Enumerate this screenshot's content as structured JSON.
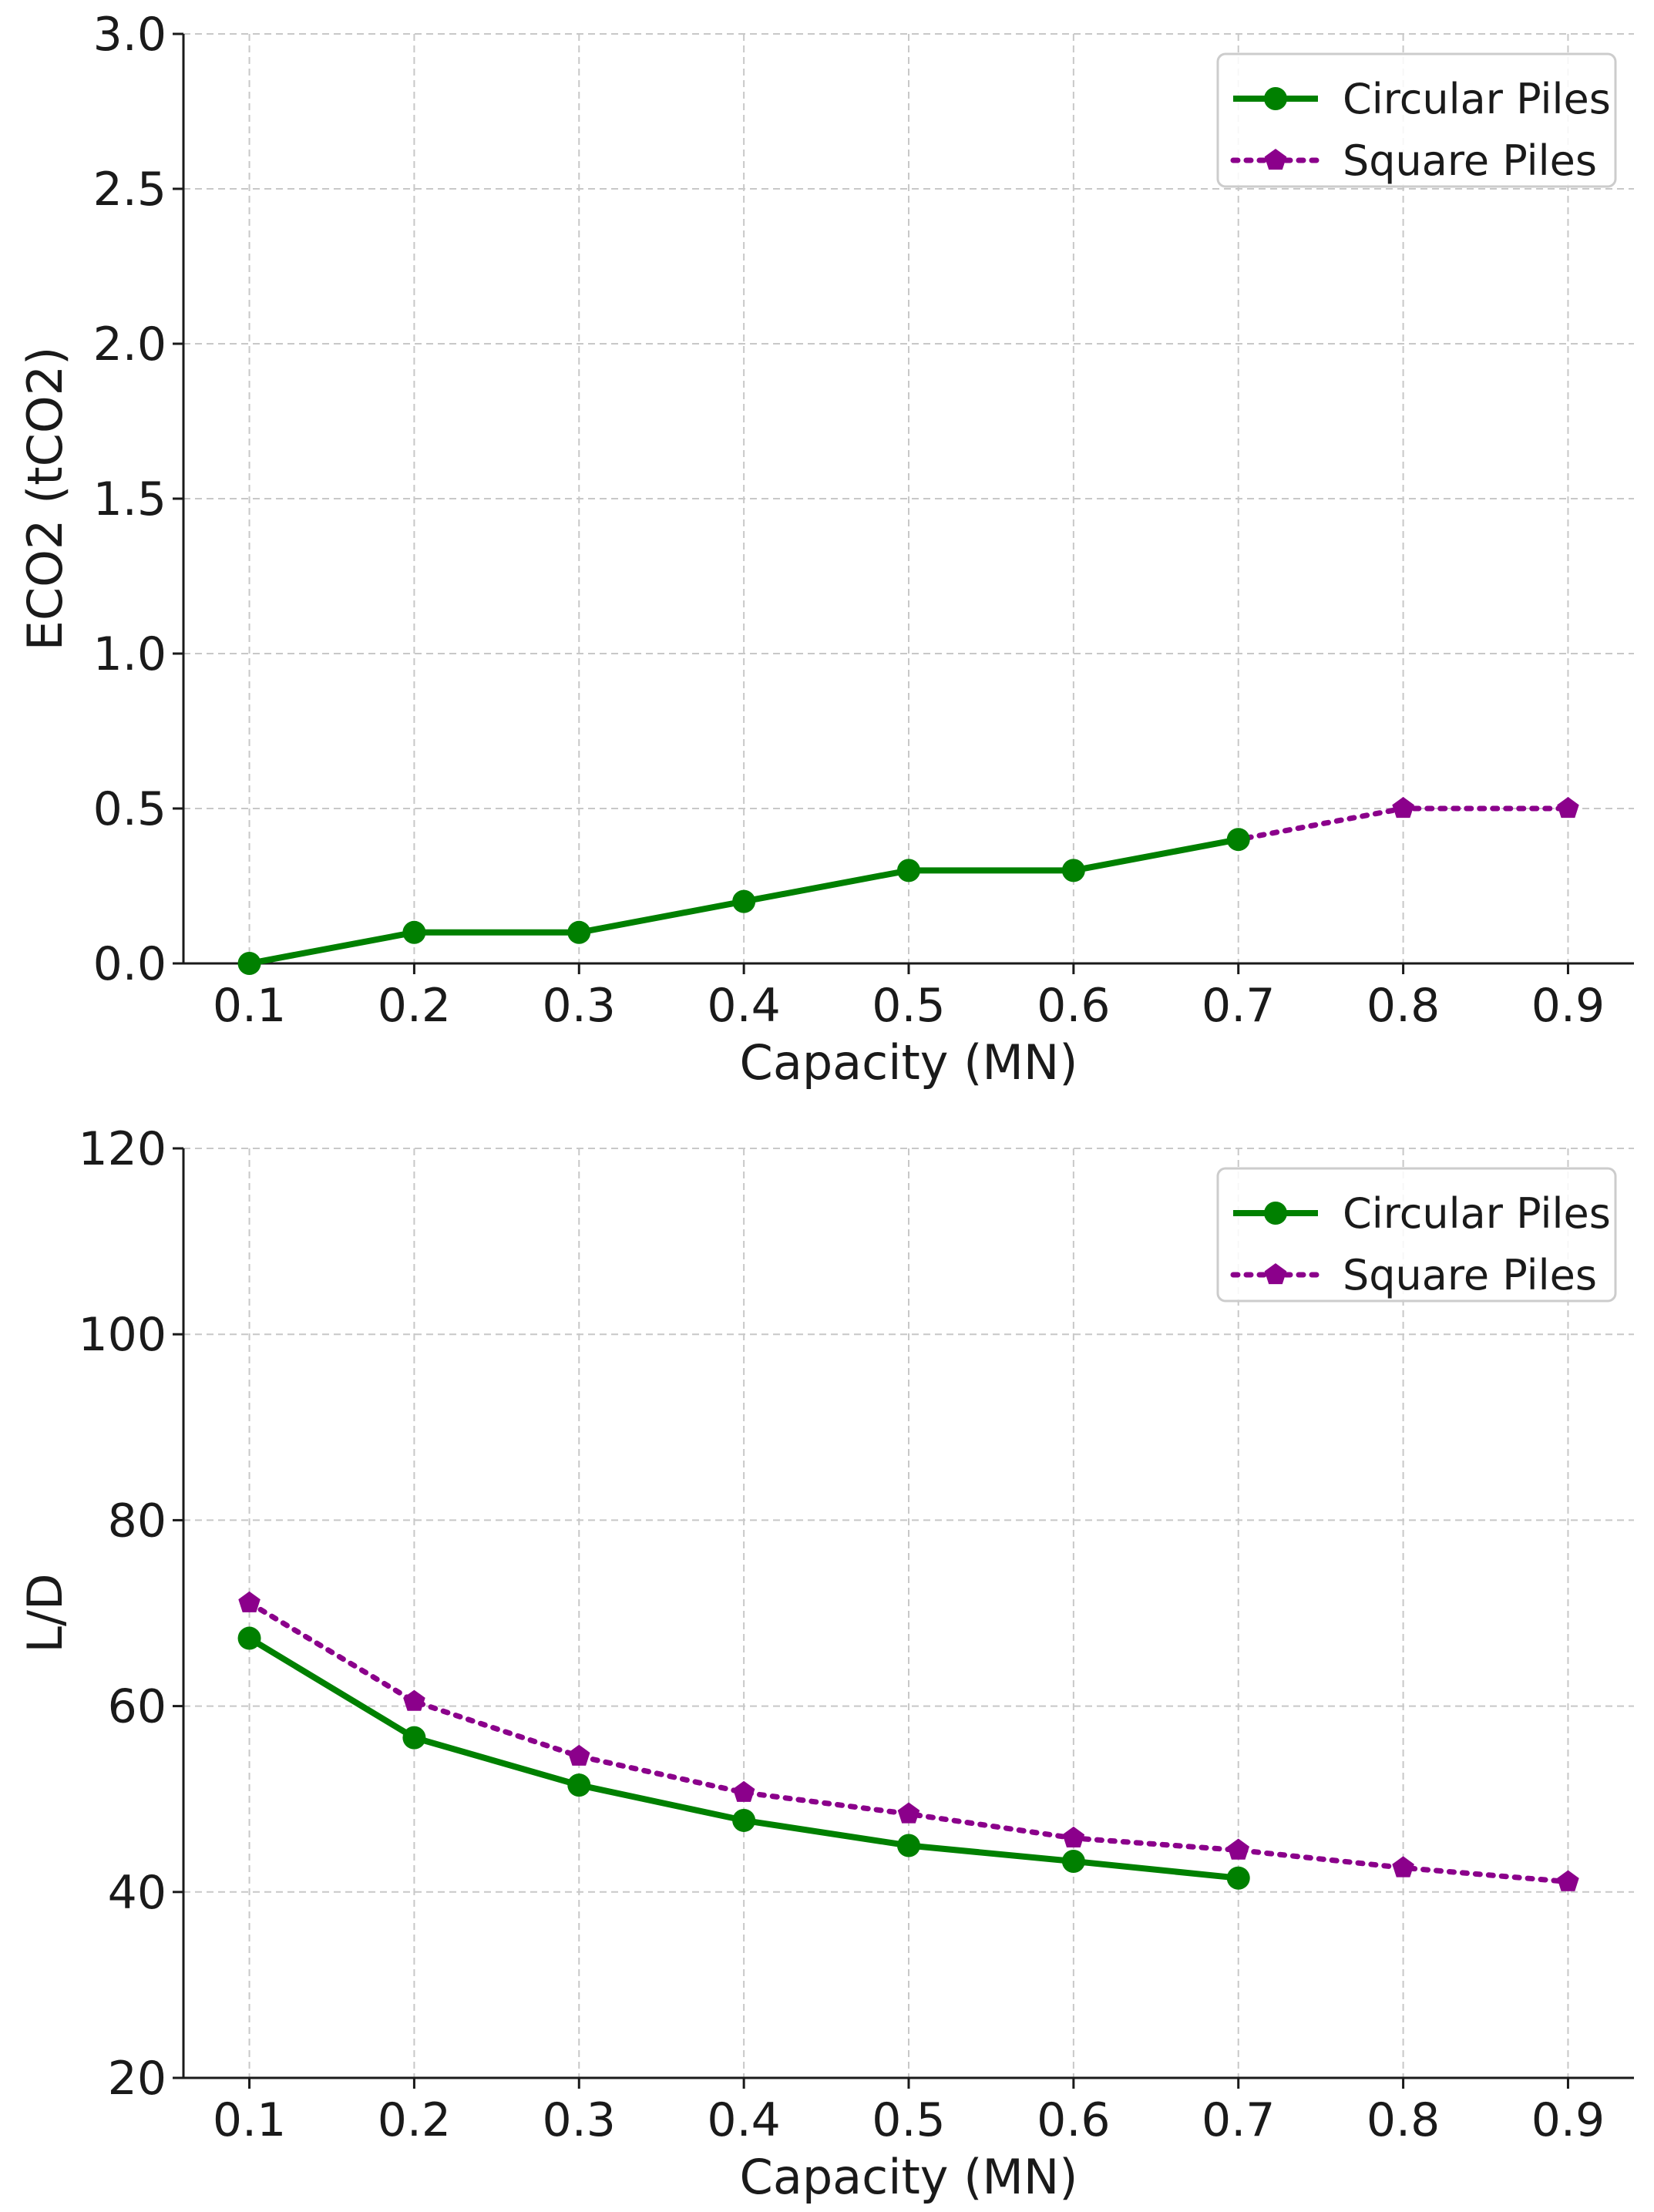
{
  "chart_data": [
    {
      "type": "line",
      "title": "",
      "xlabel": "Capacity (MN)",
      "ylabel": "ECO2 (tCO2)",
      "xlim": [
        0.06,
        0.94
      ],
      "ylim": [
        0,
        3.0
      ],
      "xticks": [
        "0.1",
        "0.2",
        "0.3",
        "0.4",
        "0.5",
        "0.6",
        "0.7",
        "0.8",
        "0.9"
      ],
      "yticks": [
        "0.0",
        "0.5",
        "1.0",
        "1.5",
        "2.0",
        "2.5",
        "3.0"
      ],
      "grid": true,
      "legend": "top-right",
      "series": [
        {
          "name": "Circular Piles",
          "color": "#008000",
          "marker": "circle",
          "linestyle": "solid",
          "x": [
            0.1,
            0.2,
            0.3,
            0.4,
            0.5,
            0.6,
            0.7
          ],
          "y": [
            0.0,
            0.1,
            0.1,
            0.2,
            0.3,
            0.3,
            0.4
          ]
        },
        {
          "name": "Square Piles",
          "color": "#8B008B",
          "marker": "pentagon",
          "linestyle": "dotted",
          "x": [
            0.1,
            0.2,
            0.3,
            0.4,
            0.5,
            0.6,
            0.7,
            0.8,
            0.9
          ],
          "y": [
            0.0,
            0.1,
            0.1,
            0.2,
            0.3,
            0.3,
            0.4,
            0.5,
            0.5
          ]
        }
      ]
    },
    {
      "type": "line",
      "title": "",
      "xlabel": "Capacity (MN)",
      "ylabel": "L/D",
      "xlim": [
        0.06,
        0.94
      ],
      "ylim": [
        20,
        120
      ],
      "xticks": [
        "0.1",
        "0.2",
        "0.3",
        "0.4",
        "0.5",
        "0.6",
        "0.7",
        "0.8",
        "0.9"
      ],
      "yticks": [
        "20",
        "40",
        "60",
        "80",
        "100",
        "120"
      ],
      "grid": true,
      "legend": "top-right",
      "series": [
        {
          "name": "Circular Piles",
          "color": "#008000",
          "marker": "circle",
          "linestyle": "solid",
          "x": [
            0.1,
            0.2,
            0.3,
            0.4,
            0.5,
            0.6,
            0.7
          ],
          "y": [
            67.3,
            56.6,
            51.5,
            47.7,
            45.0,
            43.3,
            41.5
          ]
        },
        {
          "name": "Square Piles",
          "color": "#8B008B",
          "marker": "pentagon",
          "linestyle": "dotted",
          "x": [
            0.1,
            0.2,
            0.3,
            0.4,
            0.5,
            0.6,
            0.7,
            0.8,
            0.9
          ],
          "y": [
            71.1,
            60.5,
            54.6,
            50.7,
            48.4,
            45.8,
            44.5,
            42.6,
            41.1
          ]
        }
      ]
    }
  ]
}
